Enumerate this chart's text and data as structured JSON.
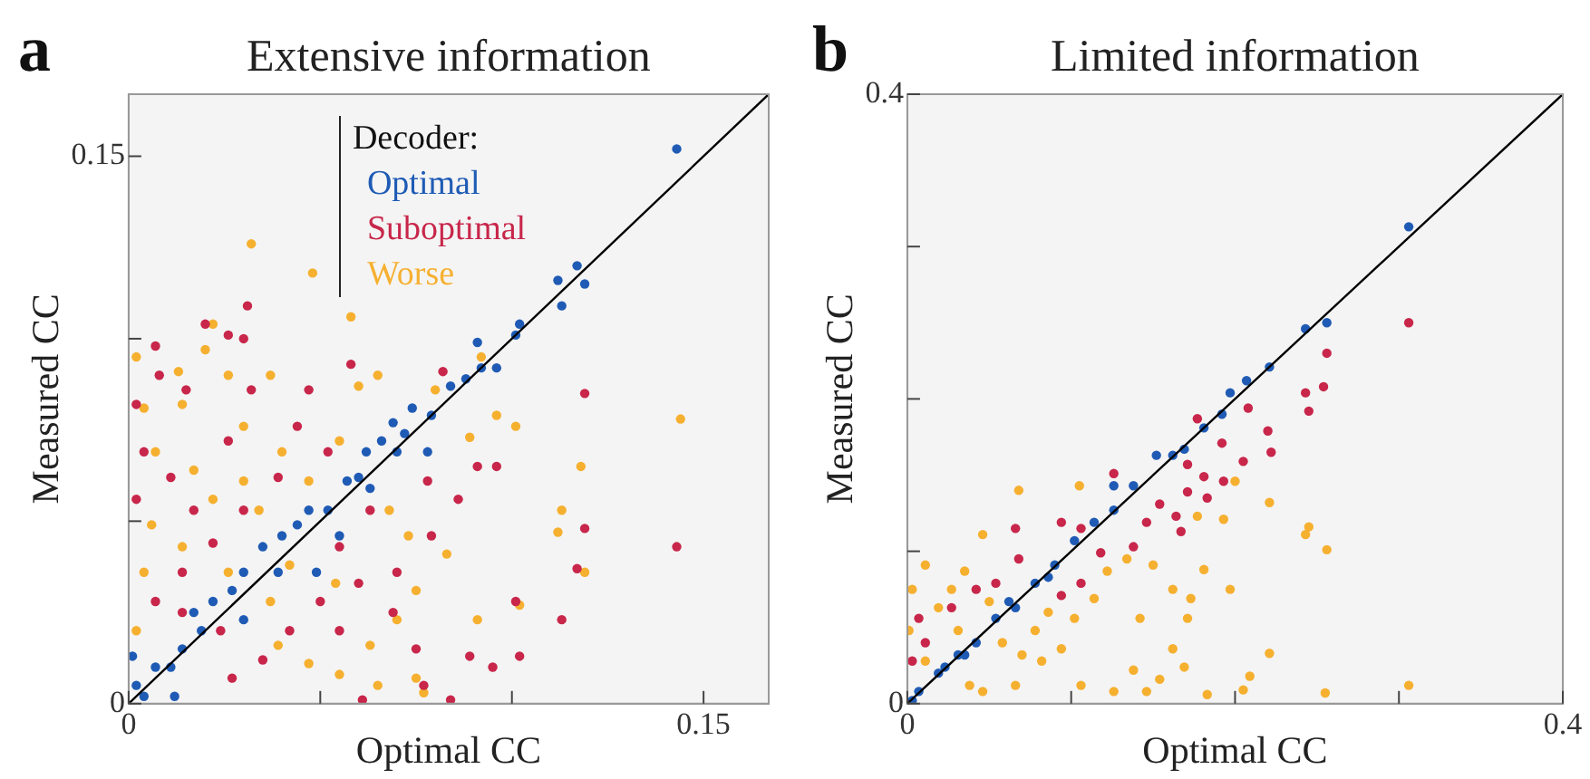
{
  "chart_data": [
    {
      "type": "scatter",
      "title": "Extensive information",
      "xlabel": "Optimal CC",
      "ylabel": "Measured CC",
      "legend_title": "Decoder:",
      "legend": "top",
      "marker": "circle",
      "grid": false,
      "annotations": [
        "a"
      ],
      "xlim": [
        0,
        0.167
      ],
      "ylim": [
        0,
        0.167
      ],
      "xticks": [
        0,
        {
          "value": 0.05,
          "label": null
        },
        {
          "value": 0.1,
          "label": null
        },
        0.15
      ],
      "yticks": [
        0,
        {
          "value": 0.05,
          "label": null
        },
        {
          "value": 0.1,
          "label": null
        },
        0.15
      ],
      "series": [
        {
          "name": "Optimal",
          "color": "#1f5bb5",
          "x": [
            0.143,
            0.117,
            0.112,
            0.119,
            0.113,
            0.102,
            0.101,
            0.091,
            0.092,
            0.096,
            0.088,
            0.084,
            0.079,
            0.074,
            0.078,
            0.069,
            0.066,
            0.062,
            0.06,
            0.057,
            0.052,
            0.047,
            0.049,
            0.04,
            0.039,
            0.03,
            0.03,
            0.022,
            0.019,
            0.014,
            0.007,
            0.002,
            0.004,
            0.012,
            0.001,
            0.035,
            0.044,
            0.027,
            0.017,
            0.011,
            0.055,
            0.063,
            0.07,
            0.072
          ],
          "values": [
            0.152,
            0.12,
            0.116,
            0.115,
            0.109,
            0.104,
            0.101,
            0.099,
            0.092,
            0.092,
            0.089,
            0.087,
            0.079,
            0.081,
            0.069,
            0.077,
            0.072,
            0.069,
            0.062,
            0.061,
            0.053,
            0.053,
            0.036,
            0.046,
            0.036,
            0.036,
            0.023,
            0.028,
            0.02,
            0.015,
            0.01,
            0.005,
            0.002,
            0.002,
            0.013,
            0.043,
            0.049,
            0.031,
            0.025,
            0.01,
            0.046,
            0.059,
            0.069,
            0.074
          ]
        },
        {
          "name": "Suboptimal",
          "color": "#c8264a",
          "x": [
            0.031,
            0.02,
            0.026,
            0.03,
            0.007,
            0.002,
            0.058,
            0.082,
            0.119,
            0.143,
            0.119,
            0.117,
            0.113,
            0.101,
            0.102,
            0.095,
            0.089,
            0.084,
            0.061,
            0.091,
            0.096,
            0.078,
            0.086,
            0.079,
            0.07,
            0.069,
            0.075,
            0.077,
            0.055,
            0.05,
            0.042,
            0.035,
            0.027,
            0.044,
            0.039,
            0.03,
            0.022,
            0.014,
            0.007,
            0.002,
            0.004,
            0.011,
            0.017,
            0.026,
            0.032,
            0.015,
            0.008,
            0.047,
            0.052,
            0.055,
            0.063,
            0.06,
            0.024,
            0.014
          ],
          "values": [
            0.109,
            0.104,
            0.101,
            0.1,
            0.098,
            0.082,
            0.093,
            0.091,
            0.085,
            0.043,
            0.048,
            0.037,
            0.023,
            0.028,
            0.013,
            0.01,
            0.013,
            0.001,
            0.001,
            0.065,
            0.065,
            0.061,
            0.056,
            0.046,
            0.036,
            0.025,
            0.015,
            0.005,
            0.02,
            0.028,
            0.02,
            0.012,
            0.007,
            0.076,
            0.062,
            0.053,
            0.044,
            0.036,
            0.028,
            0.056,
            0.069,
            0.062,
            0.053,
            0.072,
            0.086,
            0.086,
            0.09,
            0.086,
            0.069,
            0.043,
            0.053,
            0.033,
            0.02,
            0.025
          ]
        },
        {
          "name": "Worse",
          "color": "#f6b030",
          "x": [
            0.032,
            0.048,
            0.058,
            0.022,
            0.02,
            0.002,
            0.092,
            0.144,
            0.118,
            0.113,
            0.112,
            0.119,
            0.102,
            0.091,
            0.083,
            0.089,
            0.096,
            0.101,
            0.08,
            0.065,
            0.06,
            0.037,
            0.026,
            0.013,
            0.004,
            0.014,
            0.007,
            0.017,
            0.03,
            0.04,
            0.03,
            0.022,
            0.006,
            0.014,
            0.004,
            0.002,
            0.034,
            0.047,
            0.055,
            0.068,
            0.073,
            0.075,
            0.07,
            0.063,
            0.055,
            0.065,
            0.075,
            0.077,
            0.047,
            0.039,
            0.037,
            0.054,
            0.042,
            0.026
          ],
          "values": [
            0.126,
            0.118,
            0.106,
            0.104,
            0.097,
            0.095,
            0.095,
            0.078,
            0.065,
            0.053,
            0.047,
            0.036,
            0.027,
            0.023,
            0.041,
            0.073,
            0.079,
            0.076,
            0.086,
            0.09,
            0.087,
            0.09,
            0.09,
            0.091,
            0.081,
            0.082,
            0.069,
            0.064,
            0.076,
            0.069,
            0.061,
            0.056,
            0.049,
            0.043,
            0.036,
            0.02,
            0.053,
            0.061,
            0.072,
            0.053,
            0.046,
            0.031,
            0.023,
            0.016,
            0.008,
            0.005,
            0.007,
            0.003,
            0.011,
            0.016,
            0.028,
            0.033,
            0.038,
            0.036
          ]
        },
        {
          "type": "line",
          "color": "#000000",
          "marker": "none",
          "x": [
            0,
            0.167
          ],
          "values": [
            0,
            0.167
          ]
        }
      ]
    },
    {
      "type": "scatter",
      "title": "Limited information",
      "xlabel": "Optimal CC",
      "ylabel": "Measured CC",
      "marker": "circle",
      "grid": false,
      "annotations": [
        "b"
      ],
      "xlim": [
        0,
        0.4
      ],
      "ylim": [
        0,
        0.4
      ],
      "xticks": [
        0,
        {
          "value": 0.1,
          "label": null
        },
        {
          "value": 0.2,
          "label": null
        },
        {
          "value": 0.3,
          "label": null
        },
        0.4
      ],
      "yticks": [
        0,
        {
          "value": 0.1,
          "label": null
        },
        {
          "value": 0.2,
          "label": null
        },
        {
          "value": 0.3,
          "label": null
        },
        0.4
      ],
      "series": [
        {
          "color": "#1f5bb5",
          "x": [
            0.306,
            0.256,
            0.243,
            0.221,
            0.207,
            0.197,
            0.192,
            0.181,
            0.169,
            0.162,
            0.152,
            0.138,
            0.126,
            0.114,
            0.102,
            0.09,
            0.078,
            0.066,
            0.054,
            0.042,
            0.031,
            0.019,
            0.007,
            0.003,
            0.126,
            0.086,
            0.062,
            0.035,
            0.023
          ],
          "values": [
            0.313,
            0.25,
            0.246,
            0.221,
            0.212,
            0.204,
            0.19,
            0.181,
            0.167,
            0.163,
            0.163,
            0.143,
            0.127,
            0.119,
            0.107,
            0.091,
            0.079,
            0.063,
            0.056,
            0.04,
            0.032,
            0.02,
            0.008,
            0.002,
            0.143,
            0.083,
            0.067,
            0.032,
            0.024
          ]
        },
        {
          "color": "#c8264a",
          "x": [
            0.306,
            0.256,
            0.254,
            0.243,
            0.245,
            0.208,
            0.177,
            0.192,
            0.22,
            0.222,
            0.205,
            0.193,
            0.181,
            0.171,
            0.171,
            0.183,
            0.164,
            0.167,
            0.126,
            0.154,
            0.146,
            0.138,
            0.118,
            0.106,
            0.094,
            0.066,
            0.068,
            0.054,
            0.042,
            0.027,
            0.007,
            0.011,
            0.003,
            0.094,
            0.106
          ],
          "values": [
            0.25,
            0.23,
            0.208,
            0.204,
            0.192,
            0.194,
            0.187,
            0.171,
            0.179,
            0.165,
            0.159,
            0.146,
            0.149,
            0.157,
            0.139,
            0.135,
            0.123,
            0.113,
            0.151,
            0.131,
            0.119,
            0.103,
            0.099,
            0.115,
            0.119,
            0.115,
            0.095,
            0.079,
            0.075,
            0.063,
            0.056,
            0.04,
            0.028,
            0.071,
            0.079
          ]
        },
        {
          "color": "#f6b030",
          "x": [
            0.068,
            0.105,
            0.2,
            0.221,
            0.245,
            0.243,
            0.256,
            0.193,
            0.177,
            0.181,
            0.197,
            0.162,
            0.173,
            0.171,
            0.162,
            0.169,
            0.221,
            0.209,
            0.183,
            0.255,
            0.306,
            0.205,
            0.154,
            0.146,
            0.138,
            0.126,
            0.142,
            0.15,
            0.134,
            0.122,
            0.114,
            0.102,
            0.094,
            0.082,
            0.066,
            0.046,
            0.038,
            0.058,
            0.078,
            0.106,
            0.046,
            0.035,
            0.011,
            0.003,
            0.027,
            0.019,
            0.001,
            0.031,
            0.011,
            0.05,
            0.086,
            0.07
          ],
          "values": [
            0.14,
            0.143,
            0.146,
            0.132,
            0.116,
            0.111,
            0.101,
            0.121,
            0.123,
            0.088,
            0.075,
            0.075,
            0.069,
            0.056,
            0.036,
            0.024,
            0.033,
            0.018,
            0.006,
            0.007,
            0.012,
            0.009,
            0.016,
            0.008,
            0.022,
            0.008,
            0.056,
            0.091,
            0.095,
            0.087,
            0.069,
            0.056,
            0.036,
            0.028,
            0.012,
            0.008,
            0.012,
            0.04,
            0.048,
            0.012,
            0.111,
            0.087,
            0.091,
            0.075,
            0.075,
            0.063,
            0.048,
            0.048,
            0.028,
            0.067,
            0.06,
            0.032
          ]
        },
        {
          "type": "line",
          "color": "#000000",
          "marker": "none",
          "x": [
            0,
            0.4
          ],
          "values": [
            0,
            0.4
          ]
        }
      ]
    }
  ]
}
